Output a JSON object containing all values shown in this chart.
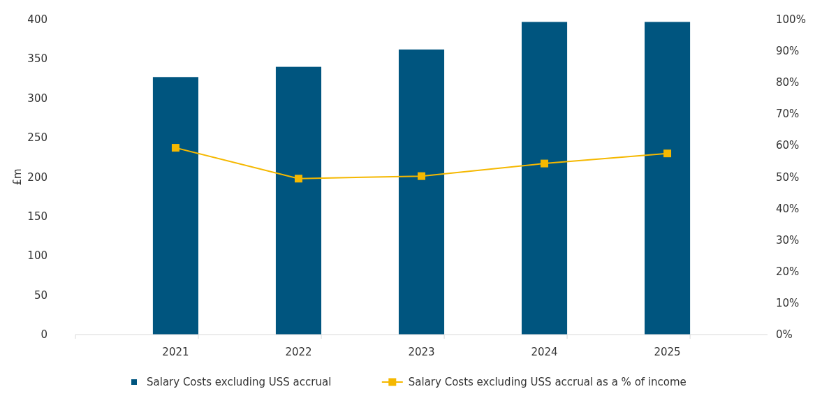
{
  "chart_data": {
    "type": "bar",
    "ylabel": "£m",
    "categories": [
      "2021",
      "2022",
      "2023",
      "2024",
      "2025"
    ],
    "series": [
      {
        "name": "Salary Costs excluding USS accrual",
        "color": "#00557f",
        "values": [
          327,
          340,
          362,
          397,
          397
        ]
      },
      {
        "name": "Salary Costs excluding USS accrual as a % of income",
        "type": "line",
        "axis": "y2",
        "color": "#f5b800",
        "values": [
          59.3,
          49.5,
          50.3,
          54.3,
          57.5
        ]
      }
    ],
    "ylim": [
      0,
      400
    ],
    "yticks": [
      0,
      50,
      100,
      150,
      200,
      250,
      300,
      350,
      400
    ],
    "y2lim": [
      0,
      100
    ],
    "y2ticks": [
      {
        "value": 0,
        "label": "0%"
      },
      {
        "value": 10,
        "label": "10%"
      },
      {
        "value": 20,
        "label": "20%"
      },
      {
        "value": 30,
        "label": "30%"
      },
      {
        "value": 40,
        "label": "40%"
      },
      {
        "value": 50,
        "label": "50%"
      },
      {
        "value": 60,
        "label": "60%"
      },
      {
        "value": 70,
        "label": "70%"
      },
      {
        "value": 80,
        "label": "80%"
      },
      {
        "value": 90,
        "label": "90%"
      },
      {
        "value": 100,
        "label": "100%"
      }
    ],
    "grid": false,
    "legend": "bottom",
    "marker": "square",
    "line_style": "solid"
  }
}
